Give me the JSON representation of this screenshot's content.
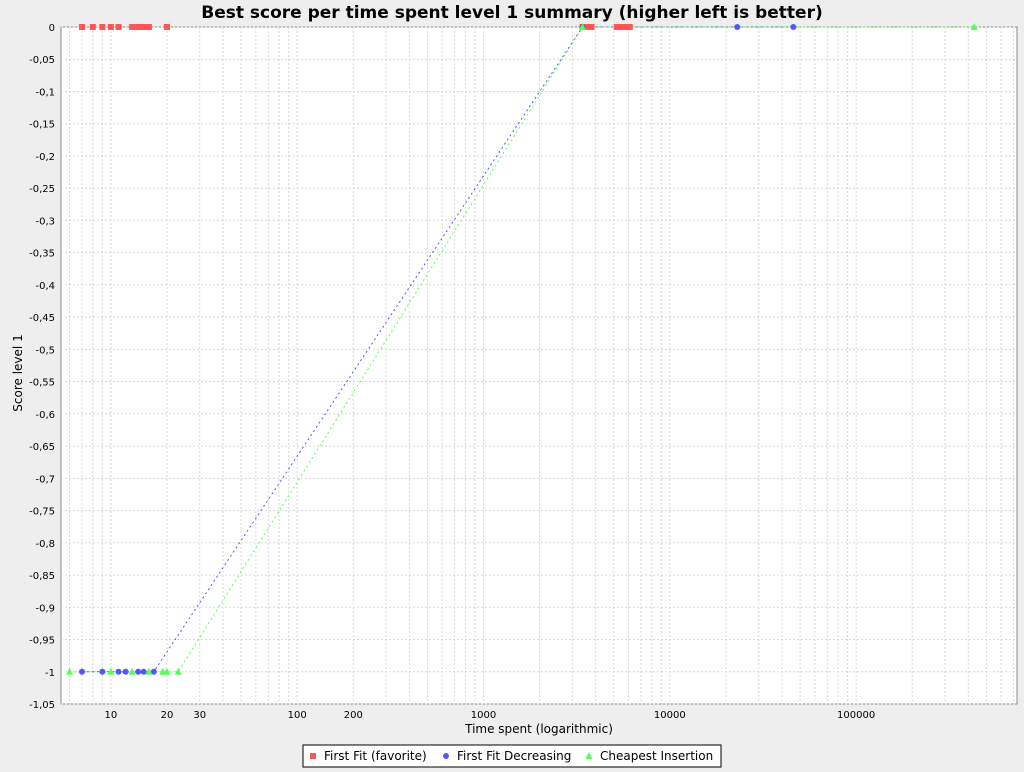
{
  "chart_data": {
    "type": "scatter",
    "title": "Best score per time spent level 1 summary (higher left is better)",
    "xlabel": "Time spent (logarithmic)",
    "ylabel": "Score level 1",
    "x_scale": "log",
    "xlim": [
      5.4,
      730000
    ],
    "ylim": [
      -1.05,
      0
    ],
    "grid": true,
    "legend_position": "bottom",
    "x_ticks": [
      {
        "value": 10,
        "label": "10"
      },
      {
        "value": 20,
        "label": "20"
      },
      {
        "value": 30,
        "label": "30"
      },
      {
        "value": 100,
        "label": "100"
      },
      {
        "value": 200,
        "label": "200"
      },
      {
        "value": 1000,
        "label": "1000"
      },
      {
        "value": 10000,
        "label": "10000"
      },
      {
        "value": 100000,
        "label": "100000"
      }
    ],
    "y_ticks": [
      {
        "value": 0,
        "label": "0"
      },
      {
        "value": -0.05,
        "label": "-0,05"
      },
      {
        "value": -0.1,
        "label": "-0,1"
      },
      {
        "value": -0.15,
        "label": "-0,15"
      },
      {
        "value": -0.2,
        "label": "-0,2"
      },
      {
        "value": -0.25,
        "label": "-0,25"
      },
      {
        "value": -0.3,
        "label": "-0,3"
      },
      {
        "value": -0.35,
        "label": "-0,35"
      },
      {
        "value": -0.4,
        "label": "-0,4"
      },
      {
        "value": -0.45,
        "label": "-0,45"
      },
      {
        "value": -0.5,
        "label": "-0,5"
      },
      {
        "value": -0.55,
        "label": "-0,55"
      },
      {
        "value": -0.6,
        "label": "-0,6"
      },
      {
        "value": -0.65,
        "label": "-0,65"
      },
      {
        "value": -0.7,
        "label": "-0,7"
      },
      {
        "value": -0.75,
        "label": "-0,75"
      },
      {
        "value": -0.8,
        "label": "-0,8"
      },
      {
        "value": -0.85,
        "label": "-0,85"
      },
      {
        "value": -0.9,
        "label": "-0,9"
      },
      {
        "value": -0.95,
        "label": "-0,95"
      },
      {
        "value": -1,
        "label": "-1"
      },
      {
        "value": -1.05,
        "label": "-1,05"
      }
    ],
    "series": [
      {
        "name": "First Fit (favorite)",
        "color": "#ff5555",
        "marker": "square",
        "connected": false,
        "points": [
          {
            "x": 7,
            "y": 0
          },
          {
            "x": 8,
            "y": 0
          },
          {
            "x": 9,
            "y": 0
          },
          {
            "x": 10,
            "y": 0
          },
          {
            "x": 11,
            "y": 0
          },
          {
            "x": 13,
            "y": 0
          },
          {
            "x": 14,
            "y": 0
          },
          {
            "x": 15,
            "y": 0
          },
          {
            "x": 16,
            "y": 0
          },
          {
            "x": 20,
            "y": 0
          },
          {
            "x": 3400,
            "y": 0
          },
          {
            "x": 3600,
            "y": 0
          },
          {
            "x": 3800,
            "y": 0
          },
          {
            "x": 5200,
            "y": 0
          },
          {
            "x": 5500,
            "y": 0
          },
          {
            "x": 5800,
            "y": 0
          },
          {
            "x": 6100,
            "y": 0
          }
        ]
      },
      {
        "name": "First Fit Decreasing",
        "color": "#5555ff",
        "marker": "circle",
        "connected": true,
        "points": [
          {
            "x": 7,
            "y": -1
          },
          {
            "x": 9,
            "y": -1
          },
          {
            "x": 11,
            "y": -1
          },
          {
            "x": 12,
            "y": -1
          },
          {
            "x": 14,
            "y": -1
          },
          {
            "x": 15,
            "y": -1
          },
          {
            "x": 17,
            "y": -1
          },
          {
            "x": 3400,
            "y": 0
          },
          {
            "x": 23000,
            "y": 0
          },
          {
            "x": 46000,
            "y": 0
          }
        ]
      },
      {
        "name": "Cheapest Insertion",
        "color": "#55ff55",
        "marker": "triangle",
        "connected": true,
        "points": [
          {
            "x": 6,
            "y": -1
          },
          {
            "x": 10,
            "y": -1
          },
          {
            "x": 13,
            "y": -1
          },
          {
            "x": 16,
            "y": -1
          },
          {
            "x": 19,
            "y": -1
          },
          {
            "x": 20,
            "y": -1
          },
          {
            "x": 23,
            "y": -1
          },
          {
            "x": 3400,
            "y": 0
          },
          {
            "x": 430000,
            "y": 0
          }
        ]
      }
    ]
  }
}
